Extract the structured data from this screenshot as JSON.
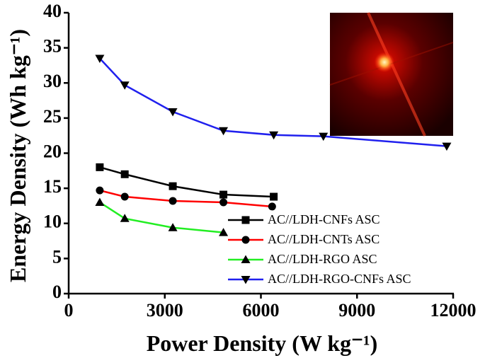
{
  "chart_data": {
    "type": "line",
    "x_label": "Power Density (W kg⁻¹)",
    "y_label": "Energy Density (Wh kg⁻¹)",
    "xlim": [
      0,
      12000
    ],
    "xticks": [
      0,
      3000,
      6000,
      9000,
      12000
    ],
    "ylim": [
      0,
      40
    ],
    "yticks": [
      0,
      5,
      10,
      15,
      20,
      25,
      30,
      35,
      40
    ],
    "legend": "lower right",
    "series": [
      {
        "name": "AC//LDH-CNFs ASC",
        "color": "#000000",
        "marker": "square",
        "x": [
          970,
          1750,
          3250,
          4830,
          6400
        ],
        "values": [
          18.0,
          17.0,
          15.3,
          14.1,
          13.8
        ]
      },
      {
        "name": "AC//LDH-CNTs ASC",
        "color": "#ff0000",
        "marker": "circle",
        "x": [
          970,
          1750,
          3250,
          4830,
          6350
        ],
        "values": [
          14.7,
          13.8,
          13.2,
          13.0,
          12.4
        ]
      },
      {
        "name": "AC//LDH-RGO ASC",
        "color": "#22ee22",
        "marker": "triangle-up",
        "x": [
          970,
          1750,
          3250,
          4830
        ],
        "values": [
          13.0,
          10.7,
          9.4,
          8.7
        ]
      },
      {
        "name": "AC//LDH-RGO-CNFs ASC",
        "color": "#2020ee",
        "marker": "triangle-down",
        "x": [
          970,
          1750,
          3250,
          4830,
          6400,
          7950,
          11800
        ],
        "values": [
          33.5,
          29.7,
          25.9,
          23.2,
          22.6,
          22.4,
          21.0
        ]
      }
    ]
  }
}
